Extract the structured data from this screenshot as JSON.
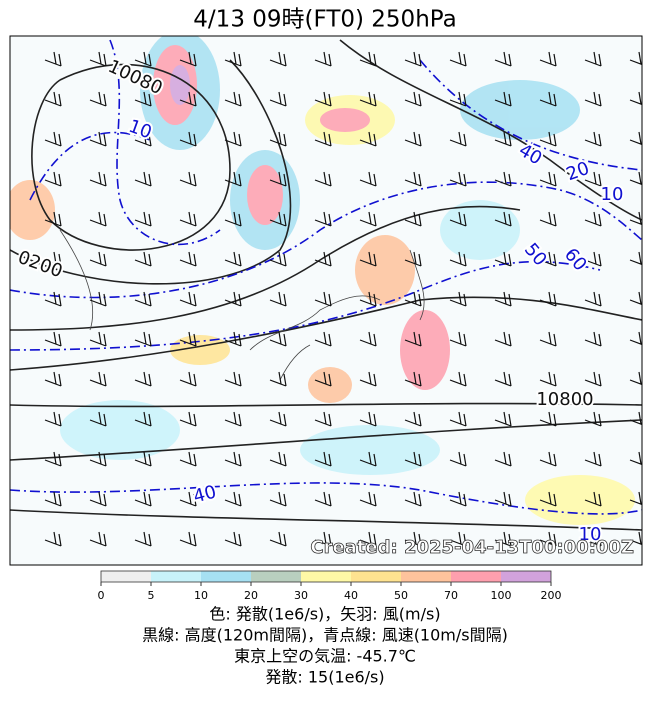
{
  "title": "4/13  09時(FT0)    250hPa",
  "map": {
    "created": "Created: 2025-04-13T00:00:00Z",
    "contour_labels": [
      "10080",
      "0200",
      "10800",
      "10",
      "40",
      "20",
      "10",
      "50",
      "60",
      "40",
      "10"
    ]
  },
  "colorbar": {
    "ticks": [
      0,
      5,
      10,
      20,
      30,
      40,
      50,
      70,
      100,
      200
    ],
    "colors": [
      "#efefef",
      "#c8f2fa",
      "#a6e0f2",
      "#b9cfbf",
      "#fff9a6",
      "#ffe390",
      "#ffc39c",
      "#ff9fae",
      "#d2a2dc"
    ]
  },
  "caption": [
    "色: 発散(1e6/s)，矢羽: 風(m/s)",
    "黒線: 高度(120m間隔)，青点線: 風速(10m/s間隔)",
    "東京上空の気温: -45.7℃",
    "発散: 15(1e6/s)"
  ]
}
